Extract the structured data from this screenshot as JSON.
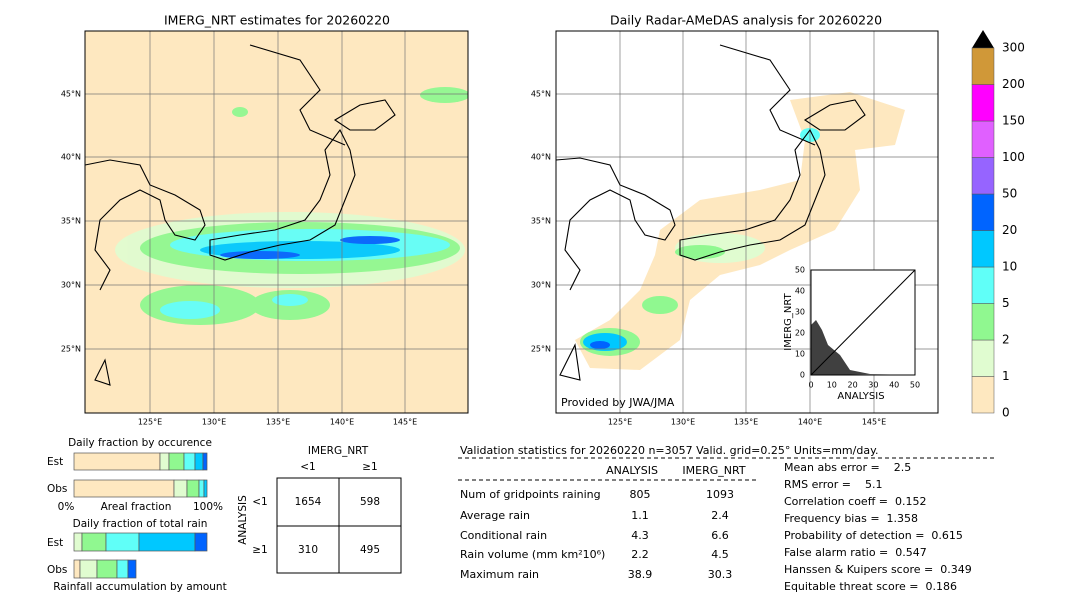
{
  "left_map": {
    "title": "IMERG_NRT estimates for 20260220",
    "lat_labels": [
      "45°N",
      "40°N",
      "35°N",
      "30°N",
      "25°N"
    ],
    "lon_labels": [
      "125°E",
      "130°E",
      "135°E",
      "140°E",
      "145°E"
    ]
  },
  "right_map": {
    "title": "Daily Radar-AMeDAS analysis for 20260220",
    "lat_labels": [
      "45°N",
      "40°N",
      "35°N",
      "30°N",
      "25°N"
    ],
    "lon_labels": [
      "125°E",
      "130°E",
      "135°E",
      "140°E",
      "145°E"
    ],
    "credit": "Provided by JWA/JMA"
  },
  "inset_scatter": {
    "xlabel": "ANALYSIS",
    "ylabel": "IMERG_NRT",
    "ticks": [
      "0",
      "10",
      "20",
      "30",
      "40",
      "50"
    ]
  },
  "colorbar": {
    "labels": [
      "0",
      "1",
      "2",
      "5",
      "10",
      "20",
      "50",
      "100",
      "150",
      "200",
      "300"
    ],
    "colors": [
      "#fee8c0",
      "#e0fcd0",
      "#90f890",
      "#60fff8",
      "#00c8ff",
      "#0064ff",
      "#9664ff",
      "#e060ff",
      "#ff00ff",
      "#d09838"
    ]
  },
  "fraction_occurrence": {
    "title": "Daily fraction by occurence",
    "rows": [
      "Est",
      "Obs"
    ],
    "axis": [
      "0%",
      "Areal fraction",
      "100%"
    ]
  },
  "fraction_total": {
    "title": "Daily fraction of total rain",
    "rows": [
      "Est",
      "Obs"
    ],
    "footer": "Rainfall accumulation by amount"
  },
  "contingency": {
    "col_title": "IMERG_NRT",
    "cols": [
      "<1",
      "≥1"
    ],
    "row_title": "ANALYSIS",
    "rows": [
      "<1",
      "≥1"
    ],
    "cells": [
      [
        "1654",
        "598"
      ],
      [
        "310",
        "495"
      ]
    ]
  },
  "validation": {
    "header": "Validation statistics for 20260220  n=3057 Valid. grid=0.25° Units=mm/day.",
    "columns": [
      "ANALYSIS",
      "IMERG_NRT"
    ],
    "rows": [
      [
        "Num of gridpoints raining",
        "805",
        "1093"
      ],
      [
        "Average rain",
        "1.1",
        "2.4"
      ],
      [
        "Conditional rain",
        "4.3",
        "6.6"
      ],
      [
        "Rain volume (mm km²10⁶)",
        "2.2",
        "4.5"
      ],
      [
        "Maximum rain",
        "38.9",
        "30.3"
      ]
    ],
    "scores": [
      "Mean abs error =    2.5",
      "RMS error =    5.1",
      "Correlation coeff =  0.152",
      "Frequency bias =  1.358",
      "Probability of detection =  0.615",
      "False alarm ratio =  0.547",
      "Hanssen & Kuipers score =  0.349",
      "Equitable threat score =  0.186"
    ]
  }
}
